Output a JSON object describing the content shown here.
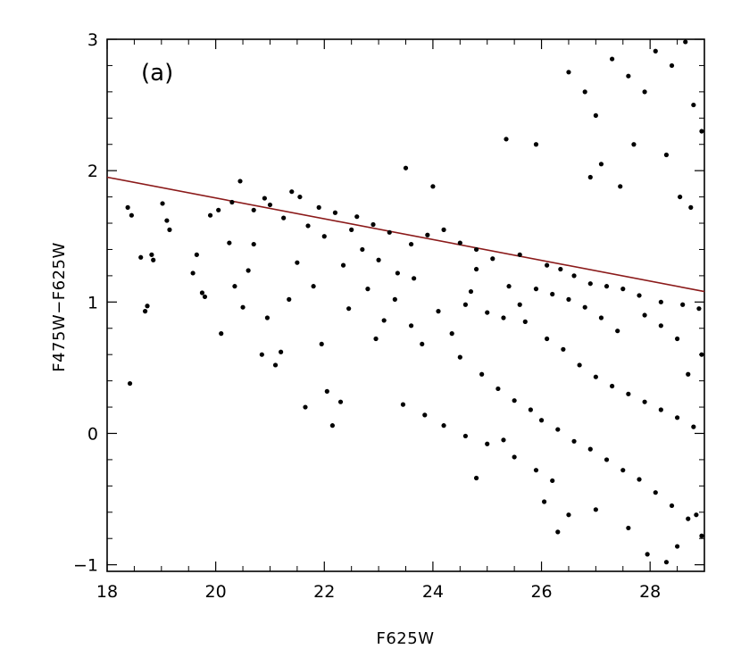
{
  "chart_data": {
    "type": "scatter",
    "panel_label": "(a)",
    "xlabel": "F625W",
    "ylabel": "F475W−F625W",
    "xlim": [
      18,
      29
    ],
    "ylim": [
      -1.05,
      3.0
    ],
    "x_ticks": [
      {
        "value": 18,
        "label": "18"
      },
      {
        "value": 20,
        "label": "20"
      },
      {
        "value": 22,
        "label": "22"
      },
      {
        "value": 24,
        "label": "24"
      },
      {
        "value": 26,
        "label": "26"
      },
      {
        "value": 28,
        "label": "28"
      }
    ],
    "y_ticks": [
      {
        "value": -1,
        "label": "−1"
      },
      {
        "value": 0,
        "label": "0"
      },
      {
        "value": 1,
        "label": "1"
      },
      {
        "value": 2,
        "label": "2"
      },
      {
        "value": 3,
        "label": "3"
      }
    ],
    "x_minor_step": 0.5,
    "y_minor_step": 0.2,
    "grid": false,
    "series": [
      {
        "type": "line",
        "color": "#8b1a1a",
        "points": [
          [
            18,
            1.95
          ],
          [
            29,
            1.08
          ]
        ]
      },
      {
        "type": "scatter",
        "color": "#000000",
        "points": [
          [
            18.38,
            1.72
          ],
          [
            18.45,
            1.66
          ],
          [
            18.42,
            0.38
          ],
          [
            18.62,
            1.34
          ],
          [
            18.7,
            0.93
          ],
          [
            18.74,
            0.97
          ],
          [
            18.82,
            1.36
          ],
          [
            18.85,
            1.32
          ],
          [
            19.02,
            1.75
          ],
          [
            19.1,
            1.62
          ],
          [
            19.15,
            1.55
          ],
          [
            19.58,
            1.22
          ],
          [
            19.65,
            1.36
          ],
          [
            19.75,
            1.07
          ],
          [
            19.8,
            1.04
          ],
          [
            19.9,
            1.66
          ],
          [
            20.05,
            1.7
          ],
          [
            20.1,
            0.76
          ],
          [
            20.25,
            1.45
          ],
          [
            20.35,
            1.12
          ],
          [
            20.5,
            0.96
          ],
          [
            20.6,
            1.24
          ],
          [
            20.7,
            1.44
          ],
          [
            20.85,
            0.6
          ],
          [
            20.95,
            0.88
          ],
          [
            21.1,
            0.52
          ],
          [
            21.2,
            0.62
          ],
          [
            21.35,
            1.02
          ],
          [
            21.5,
            1.3
          ],
          [
            21.65,
            0.2
          ],
          [
            21.8,
            1.12
          ],
          [
            21.95,
            0.68
          ],
          [
            22.05,
            0.32
          ],
          [
            22.15,
            0.06
          ],
          [
            22.3,
            0.24
          ],
          [
            22.45,
            0.95
          ],
          [
            20.45,
            1.92
          ],
          [
            20.9,
            1.79
          ],
          [
            21.4,
            1.84
          ],
          [
            21.55,
            1.8
          ],
          [
            21.9,
            1.72
          ],
          [
            22.2,
            1.68
          ],
          [
            22.6,
            1.65
          ],
          [
            22.9,
            1.59
          ],
          [
            23.2,
            1.53
          ],
          [
            23.5,
            2.02
          ],
          [
            23.6,
            1.44
          ],
          [
            23.9,
            1.51
          ],
          [
            24.0,
            1.88
          ],
          [
            24.2,
            1.55
          ],
          [
            24.5,
            1.45
          ],
          [
            24.8,
            1.4
          ],
          [
            25.1,
            1.33
          ],
          [
            25.35,
            2.24
          ],
          [
            25.6,
            1.36
          ],
          [
            25.9,
            2.2
          ],
          [
            26.1,
            1.28
          ],
          [
            26.35,
            1.25
          ],
          [
            26.6,
            1.2
          ],
          [
            26.9,
            1.14
          ],
          [
            27.2,
            1.12
          ],
          [
            27.5,
            1.1
          ],
          [
            27.8,
            1.05
          ],
          [
            28.2,
            1.0
          ],
          [
            28.6,
            0.98
          ],
          [
            28.9,
            0.95
          ],
          [
            26.5,
            2.75
          ],
          [
            26.8,
            2.6
          ],
          [
            27.0,
            2.42
          ],
          [
            27.3,
            2.85
          ],
          [
            27.6,
            2.72
          ],
          [
            27.9,
            2.6
          ],
          [
            28.1,
            2.91
          ],
          [
            28.4,
            2.8
          ],
          [
            28.65,
            2.98
          ],
          [
            28.8,
            2.5
          ],
          [
            28.95,
            2.3
          ],
          [
            27.7,
            2.2
          ],
          [
            27.1,
            2.05
          ],
          [
            28.3,
            2.12
          ],
          [
            26.9,
            1.95
          ],
          [
            27.45,
            1.88
          ],
          [
            28.55,
            1.8
          ],
          [
            28.75,
            1.72
          ],
          [
            24.8,
            1.25
          ],
          [
            25.4,
            1.12
          ],
          [
            25.7,
            0.85
          ],
          [
            26.1,
            0.72
          ],
          [
            26.4,
            0.64
          ],
          [
            26.7,
            0.52
          ],
          [
            27.0,
            0.43
          ],
          [
            27.3,
            0.36
          ],
          [
            27.6,
            0.3
          ],
          [
            27.9,
            0.24
          ],
          [
            28.2,
            0.18
          ],
          [
            28.5,
            0.12
          ],
          [
            28.8,
            0.05
          ],
          [
            24.5,
            0.58
          ],
          [
            24.9,
            0.45
          ],
          [
            25.2,
            0.34
          ],
          [
            25.5,
            0.25
          ],
          [
            25.8,
            0.18
          ],
          [
            26.0,
            0.1
          ],
          [
            26.3,
            0.03
          ],
          [
            26.6,
            -0.06
          ],
          [
            26.9,
            -0.12
          ],
          [
            27.2,
            -0.2
          ],
          [
            27.5,
            -0.28
          ],
          [
            27.8,
            -0.35
          ],
          [
            28.1,
            -0.45
          ],
          [
            28.4,
            -0.55
          ],
          [
            28.7,
            -0.65
          ],
          [
            28.95,
            -0.78
          ],
          [
            27.95,
            -0.92
          ],
          [
            28.3,
            -0.98
          ],
          [
            26.3,
            -0.75
          ],
          [
            26.5,
            -0.62
          ],
          [
            26.05,
            -0.52
          ],
          [
            24.8,
            -0.34
          ],
          [
            25.3,
            -0.05
          ],
          [
            23.6,
            0.82
          ],
          [
            23.8,
            0.68
          ],
          [
            24.1,
            0.93
          ],
          [
            24.35,
            0.76
          ],
          [
            24.6,
            0.98
          ],
          [
            23.3,
            1.02
          ],
          [
            23.1,
            0.86
          ],
          [
            22.95,
            0.72
          ],
          [
            22.8,
            1.1
          ],
          [
            23.45,
            0.22
          ],
          [
            23.85,
            0.14
          ],
          [
            24.2,
            0.06
          ],
          [
            24.6,
            -0.02
          ],
          [
            25.0,
            -0.08
          ],
          [
            25.5,
            -0.18
          ],
          [
            25.9,
            -0.28
          ],
          [
            26.2,
            -0.36
          ],
          [
            27.0,
            -0.58
          ],
          [
            27.6,
            -0.72
          ],
          [
            28.5,
            -0.86
          ],
          [
            28.85,
            -0.62
          ],
          [
            28.7,
            0.45
          ],
          [
            28.95,
            0.6
          ],
          [
            28.5,
            0.72
          ],
          [
            28.2,
            0.82
          ],
          [
            27.9,
            0.9
          ],
          [
            27.4,
            0.78
          ],
          [
            27.1,
            0.88
          ],
          [
            26.8,
            0.96
          ],
          [
            26.5,
            1.02
          ],
          [
            26.2,
            1.06
          ],
          [
            25.9,
            1.1
          ],
          [
            25.6,
            0.98
          ],
          [
            25.3,
            0.88
          ],
          [
            25.0,
            0.92
          ],
          [
            24.7,
            1.08
          ],
          [
            22.5,
            1.55
          ],
          [
            22.35,
            1.28
          ],
          [
            22.7,
            1.4
          ],
          [
            23.0,
            1.32
          ],
          [
            23.35,
            1.22
          ],
          [
            23.65,
            1.18
          ],
          [
            21.0,
            1.74
          ],
          [
            21.25,
            1.64
          ],
          [
            21.7,
            1.58
          ],
          [
            22.0,
            1.5
          ],
          [
            20.7,
            1.7
          ],
          [
            20.3,
            1.76
          ]
        ]
      }
    ]
  }
}
